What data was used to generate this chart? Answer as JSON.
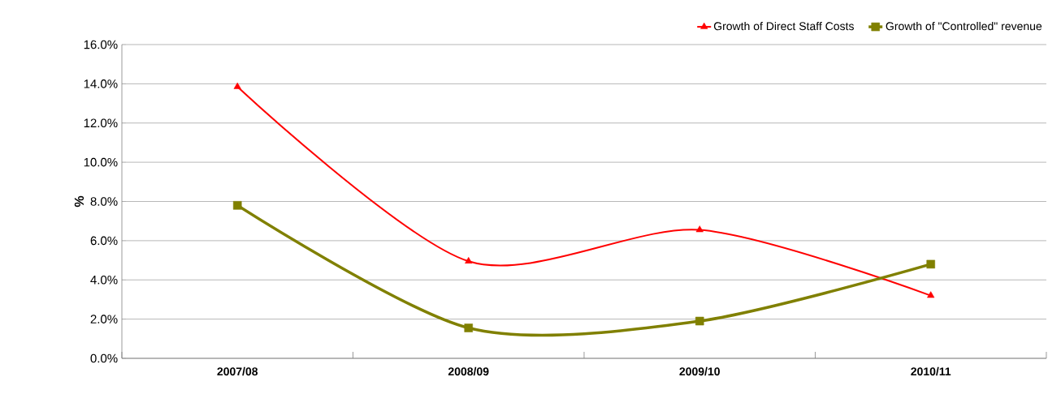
{
  "chart_data": {
    "type": "line",
    "ylabel": "%",
    "categories": [
      "2007/08",
      "2008/09",
      "2009/10",
      "2010/11"
    ],
    "series": [
      {
        "name": "Growth of Direct Staff Costs",
        "color": "#ff0000",
        "marker": "triangle",
        "values": [
          13.85,
          4.95,
          6.55,
          3.2
        ]
      },
      {
        "name": "Growth of \"Controlled\" revenue",
        "color": "#808000",
        "marker": "square",
        "values": [
          7.8,
          1.55,
          1.9,
          4.8
        ]
      }
    ],
    "ylim": [
      0,
      16
    ],
    "yticks": [
      {
        "value": 0,
        "label": "0.0%"
      },
      {
        "value": 2,
        "label": "2.0%"
      },
      {
        "value": 4,
        "label": "4.0%"
      },
      {
        "value": 6,
        "label": "6.0%"
      },
      {
        "value": 8,
        "label": "8.0%"
      },
      {
        "value": 10,
        "label": "10.0%"
      },
      {
        "value": 12,
        "label": "12.0%"
      },
      {
        "value": 14,
        "label": "14.0%"
      },
      {
        "value": 16,
        "label": "16.0%"
      }
    ],
    "grid": "y",
    "legend": "top right",
    "line_style": "solid"
  }
}
